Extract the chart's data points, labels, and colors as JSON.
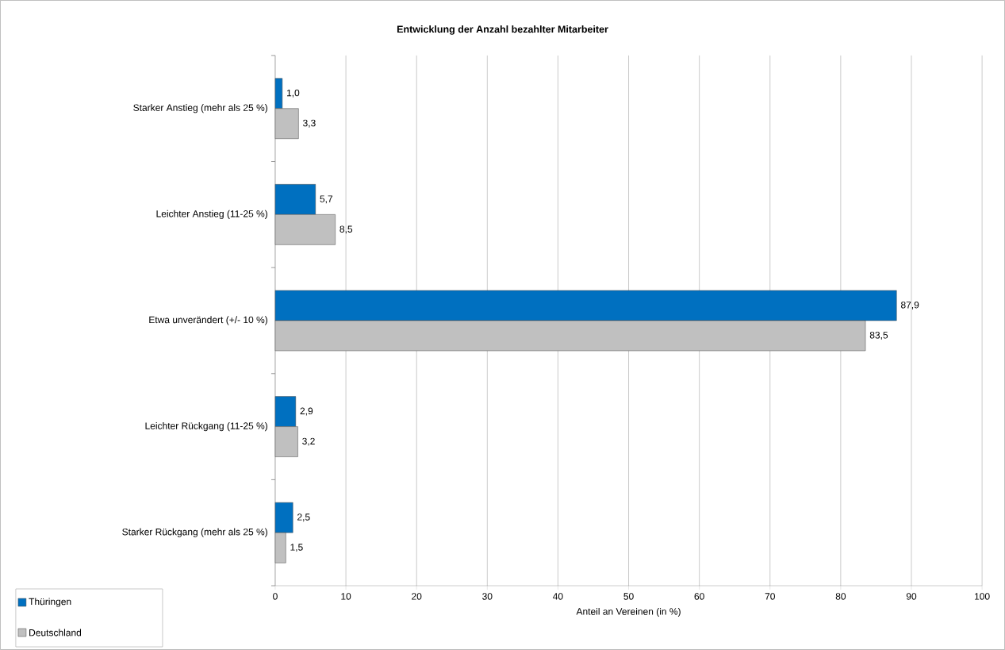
{
  "chart_data": {
    "type": "bar",
    "orientation": "horizontal",
    "title": "Entwicklung der Anzahl bezahlter Mitarbeiter",
    "xlabel": "Anteil an Vereinen (in %)",
    "categories": [
      "Starker Anstieg (mehr als 25 %)",
      "Leichter Anstieg (11-25 %)",
      "Etwa unverändert (+/- 10 %)",
      "Leichter Rückgang (11-25 %)",
      "Starker Rückgang (mehr als 25 %)"
    ],
    "series": [
      {
        "name": "Thüringen",
        "color": "#0070c0",
        "values": [
          1.0,
          5.7,
          87.9,
          2.9,
          2.5
        ],
        "value_labels": [
          "1,0",
          "5,7",
          "87,9",
          "2,9",
          "2,5"
        ]
      },
      {
        "name": "Deutschland",
        "color": "#c0c0c0",
        "values": [
          3.3,
          8.5,
          83.5,
          3.2,
          1.5
        ],
        "value_labels": [
          "3,3",
          "8,5",
          "83,5",
          "3,2",
          "1,5"
        ]
      }
    ],
    "xlim": [
      0,
      100
    ],
    "xticks": [
      0,
      10,
      20,
      30,
      40,
      50,
      60,
      70,
      80,
      90,
      100
    ],
    "grid": "x",
    "legend": "bottom left"
  }
}
